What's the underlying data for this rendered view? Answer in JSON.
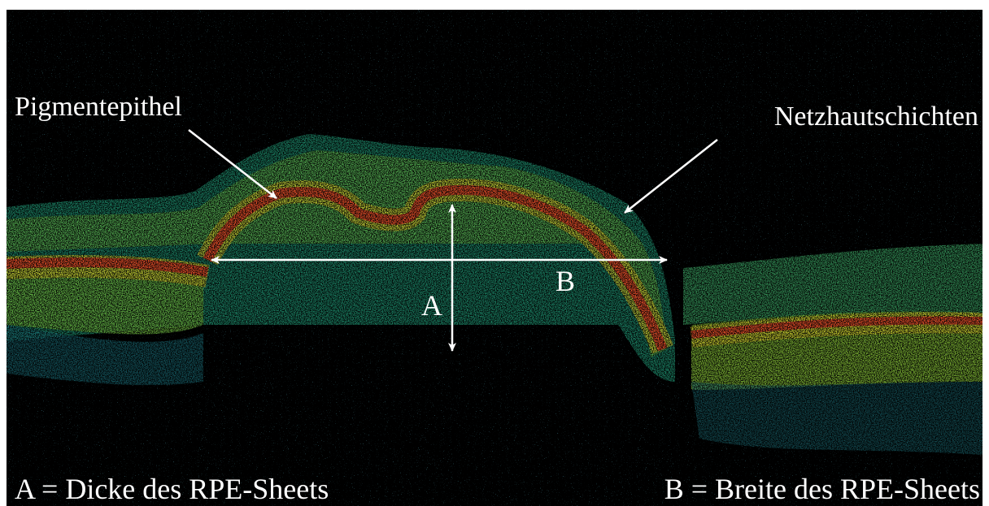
{
  "arrows": [
    {
      "label": "Pigmentepithel"
    },
    {
      "label": "Netzhautschichten"
    }
  ],
  "measures": [
    {
      "label": "A"
    },
    {
      "label": "B"
    }
  ],
  "captions": [
    "A = Dicke des RPE-Sheets",
    "B = Breite des RPE-Sheets"
  ]
}
